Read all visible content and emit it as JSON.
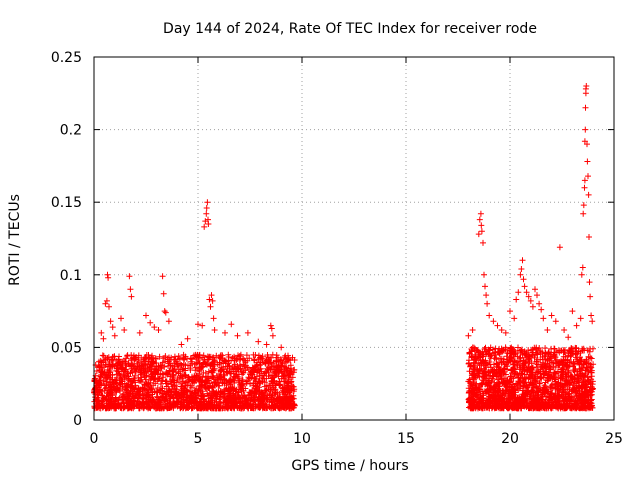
{
  "chart_data": {
    "type": "scatter",
    "title": "Day 144 of 2024, Rate Of TEC Index for receiver rode",
    "xlabel": "GPS time / hours",
    "ylabel": "ROTI / TECUs",
    "xlim": [
      0,
      25
    ],
    "ylim": [
      0,
      0.25
    ],
    "x_ticks": [
      0,
      5,
      10,
      15,
      20,
      25
    ],
    "x_tick_labels": [
      "0",
      "5",
      "10",
      "15",
      "20",
      "25"
    ],
    "y_ticks": [
      0,
      0.05,
      0.1,
      0.15,
      0.2,
      0.25
    ],
    "y_tick_labels": [
      "0",
      "0.05",
      "0.1",
      "0.15",
      "0.2",
      "0.25"
    ],
    "grid": true,
    "marker": "+",
    "color": "#ff0000",
    "data_gap_hours": [
      9.7,
      18.0
    ],
    "series": [
      {
        "name": "ROTI",
        "bulk_segments": [
          {
            "x_start": 0.0,
            "x_end": 9.65,
            "y_low": 0.008,
            "y_high": 0.045,
            "density": 2200
          },
          {
            "x_start": 18.0,
            "x_end": 24.0,
            "y_low": 0.008,
            "y_high": 0.05,
            "density": 1800
          }
        ],
        "points": [
          [
            0.35,
            0.06
          ],
          [
            0.45,
            0.056
          ],
          [
            0.55,
            0.08
          ],
          [
            0.62,
            0.082
          ],
          [
            0.65,
            0.1
          ],
          [
            0.68,
            0.098
          ],
          [
            0.72,
            0.078
          ],
          [
            0.8,
            0.068
          ],
          [
            0.9,
            0.064
          ],
          [
            1.0,
            0.058
          ],
          [
            1.3,
            0.07
          ],
          [
            1.45,
            0.062
          ],
          [
            1.7,
            0.099
          ],
          [
            1.75,
            0.09
          ],
          [
            1.8,
            0.085
          ],
          [
            2.2,
            0.06
          ],
          [
            2.5,
            0.072
          ],
          [
            2.7,
            0.067
          ],
          [
            2.9,
            0.064
          ],
          [
            3.1,
            0.062
          ],
          [
            3.3,
            0.099
          ],
          [
            3.35,
            0.087
          ],
          [
            3.4,
            0.075
          ],
          [
            3.45,
            0.074
          ],
          [
            3.6,
            0.068
          ],
          [
            4.2,
            0.052
          ],
          [
            4.5,
            0.056
          ],
          [
            5.0,
            0.066
          ],
          [
            5.2,
            0.065
          ],
          [
            5.3,
            0.133
          ],
          [
            5.35,
            0.137
          ],
          [
            5.4,
            0.142
          ],
          [
            5.42,
            0.146
          ],
          [
            5.45,
            0.15
          ],
          [
            5.48,
            0.138
          ],
          [
            5.5,
            0.135
          ],
          [
            5.55,
            0.083
          ],
          [
            5.6,
            0.078
          ],
          [
            5.65,
            0.086
          ],
          [
            5.7,
            0.082
          ],
          [
            5.75,
            0.07
          ],
          [
            5.8,
            0.062
          ],
          [
            6.3,
            0.06
          ],
          [
            6.6,
            0.066
          ],
          [
            6.9,
            0.058
          ],
          [
            7.4,
            0.06
          ],
          [
            7.9,
            0.054
          ],
          [
            8.3,
            0.052
          ],
          [
            8.5,
            0.065
          ],
          [
            8.55,
            0.063
          ],
          [
            8.6,
            0.058
          ],
          [
            9.0,
            0.05
          ],
          [
            18.0,
            0.058
          ],
          [
            18.2,
            0.062
          ],
          [
            18.5,
            0.128
          ],
          [
            18.55,
            0.138
          ],
          [
            18.6,
            0.142
          ],
          [
            18.62,
            0.134
          ],
          [
            18.65,
            0.13
          ],
          [
            18.7,
            0.122
          ],
          [
            18.75,
            0.1
          ],
          [
            18.8,
            0.092
          ],
          [
            18.85,
            0.086
          ],
          [
            18.9,
            0.08
          ],
          [
            19.0,
            0.072
          ],
          [
            19.2,
            0.068
          ],
          [
            19.4,
            0.065
          ],
          [
            19.6,
            0.062
          ],
          [
            19.8,
            0.06
          ],
          [
            20.0,
            0.075
          ],
          [
            20.2,
            0.07
          ],
          [
            20.3,
            0.083
          ],
          [
            20.4,
            0.088
          ],
          [
            20.5,
            0.1
          ],
          [
            20.55,
            0.104
          ],
          [
            20.6,
            0.11
          ],
          [
            20.65,
            0.097
          ],
          [
            20.7,
            0.092
          ],
          [
            20.8,
            0.088
          ],
          [
            20.9,
            0.085
          ],
          [
            21.0,
            0.082
          ],
          [
            21.1,
            0.078
          ],
          [
            21.2,
            0.09
          ],
          [
            21.3,
            0.086
          ],
          [
            21.4,
            0.08
          ],
          [
            21.5,
            0.076
          ],
          [
            21.6,
            0.07
          ],
          [
            21.8,
            0.062
          ],
          [
            22.0,
            0.072
          ],
          [
            22.2,
            0.068
          ],
          [
            22.4,
            0.119
          ],
          [
            22.6,
            0.062
          ],
          [
            22.8,
            0.057
          ],
          [
            23.0,
            0.075
          ],
          [
            23.2,
            0.065
          ],
          [
            23.4,
            0.07
          ],
          [
            23.45,
            0.1
          ],
          [
            23.5,
            0.105
          ],
          [
            23.52,
            0.142
          ],
          [
            23.55,
            0.148
          ],
          [
            23.58,
            0.16
          ],
          [
            23.6,
            0.165
          ],
          [
            23.6,
            0.192
          ],
          [
            23.62,
            0.2
          ],
          [
            23.63,
            0.215
          ],
          [
            23.65,
            0.225
          ],
          [
            23.65,
            0.228
          ],
          [
            23.67,
            0.23
          ],
          [
            23.7,
            0.19
          ],
          [
            23.72,
            0.178
          ],
          [
            23.75,
            0.168
          ],
          [
            23.78,
            0.155
          ],
          [
            23.8,
            0.126
          ],
          [
            23.82,
            0.095
          ],
          [
            23.85,
            0.085
          ],
          [
            23.9,
            0.072
          ],
          [
            23.95,
            0.068
          ]
        ]
      }
    ]
  }
}
